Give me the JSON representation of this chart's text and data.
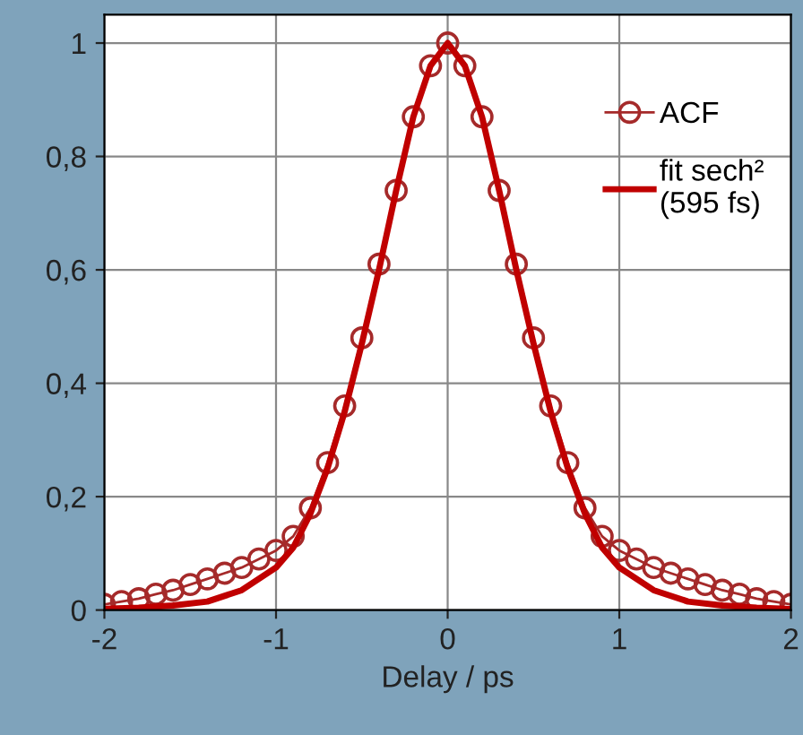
{
  "chart_data": {
    "type": "line",
    "xlabel": "Delay / ps",
    "xlim": [
      -2,
      2
    ],
    "xticks": [
      -2,
      -1,
      0,
      1,
      2
    ],
    "ylim": [
      0,
      1.05
    ],
    "yticks": [
      0,
      {
        "value": 0.2,
        "label": "0,2"
      },
      {
        "value": 0.4,
        "label": "0,4"
      },
      {
        "value": 0.6,
        "label": "0,6"
      },
      {
        "value": 0.8,
        "label": "0,8"
      },
      1
    ],
    "grid": true,
    "legend": "top right",
    "series": [
      {
        "name": "ACF",
        "marker": "circle",
        "color": "#a52a2a",
        "x": [
          -2.0,
          -1.9,
          -1.8,
          -1.7,
          -1.6,
          -1.5,
          -1.4,
          -1.3,
          -1.2,
          -1.1,
          -1.0,
          -0.9,
          -0.8,
          -0.7,
          -0.6,
          -0.5,
          -0.4,
          -0.3,
          -0.2,
          -0.1,
          0.0,
          0.1,
          0.2,
          0.3,
          0.4,
          0.5,
          0.6,
          0.7,
          0.8,
          0.9,
          1.0,
          1.1,
          1.2,
          1.3,
          1.4,
          1.5,
          1.6,
          1.7,
          1.8,
          1.9,
          2.0
        ],
        "values": [
          0.01,
          0.015,
          0.02,
          0.028,
          0.035,
          0.045,
          0.055,
          0.065,
          0.075,
          0.09,
          0.105,
          0.13,
          0.18,
          0.26,
          0.36,
          0.48,
          0.61,
          0.74,
          0.87,
          0.96,
          1.0,
          0.96,
          0.87,
          0.74,
          0.61,
          0.48,
          0.36,
          0.26,
          0.18,
          0.13,
          0.105,
          0.09,
          0.075,
          0.065,
          0.055,
          0.045,
          0.035,
          0.028,
          0.02,
          0.015,
          0.01
        ]
      },
      {
        "name": "fit sech²\n(595 fs)",
        "marker": "none",
        "color": "#c00000",
        "x": [
          -2.0,
          -1.8,
          -1.6,
          -1.4,
          -1.2,
          -1.0,
          -0.9,
          -0.8,
          -0.7,
          -0.6,
          -0.5,
          -0.4,
          -0.3,
          -0.2,
          -0.1,
          0.0,
          0.1,
          0.2,
          0.3,
          0.4,
          0.5,
          0.6,
          0.7,
          0.8,
          0.9,
          1.0,
          1.2,
          1.4,
          1.6,
          1.8,
          2.0
        ],
        "values": [
          0.002,
          0.004,
          0.008,
          0.015,
          0.035,
          0.075,
          0.11,
          0.17,
          0.25,
          0.35,
          0.47,
          0.6,
          0.74,
          0.87,
          0.96,
          1.0,
          0.96,
          0.87,
          0.74,
          0.6,
          0.47,
          0.35,
          0.25,
          0.17,
          0.11,
          0.075,
          0.035,
          0.015,
          0.008,
          0.004,
          0.002
        ]
      }
    ]
  }
}
